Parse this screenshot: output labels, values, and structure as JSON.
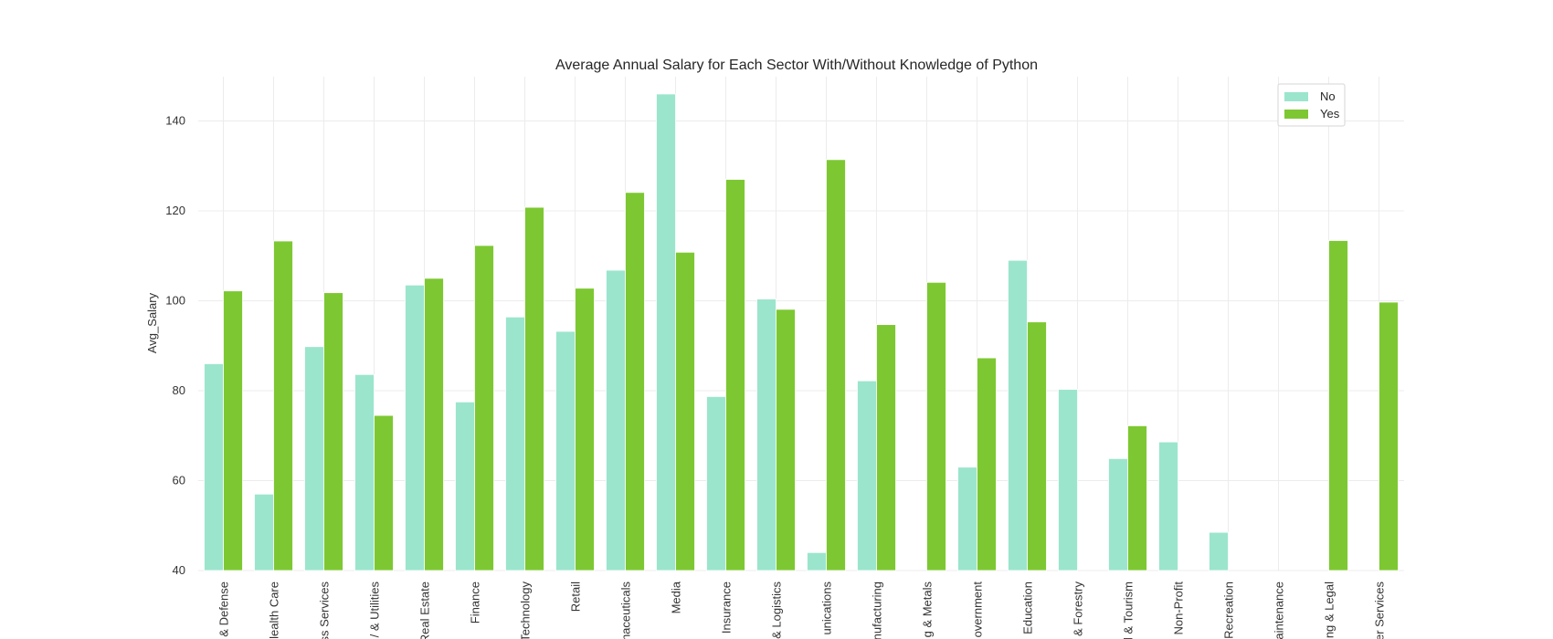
{
  "chart_data": {
    "type": "bar",
    "title": "Average Annual Salary for Each Sector With/Without Knowledge of Python",
    "xlabel": "",
    "ylabel": "Avg_Salary",
    "ylim": [
      40,
      150
    ],
    "yticks": [
      40,
      60,
      80,
      100,
      120,
      140
    ],
    "grid": true,
    "legend_position": "top-right",
    "categories": [
      "& Defense",
      "lealth Care",
      "ss Services",
      "/ & Utilities",
      "Real Estate",
      "Finance",
      "Technology",
      "Retail",
      "naceuticals",
      "Media",
      "Insurance",
      "& Logistics",
      "unications",
      "nufacturing",
      "g & Metals",
      "overnment",
      "Education",
      "& Forestry",
      "l & Tourism",
      "Non-Profit",
      "Recreation",
      "aintenance",
      "ng & Legal",
      "er Services"
    ],
    "series": [
      {
        "name": "No",
        "color": "#9be5cd",
        "values": [
          86,
          57,
          89.8,
          83.6,
          103.5,
          77.5,
          96.4,
          93.2,
          106.8,
          146,
          78.7,
          100.4,
          44,
          82.2,
          null,
          63,
          109,
          80.3,
          64.9,
          68.6,
          48.5,
          null,
          null,
          null
        ]
      },
      {
        "name": "Yes",
        "color": "#7dc832",
        "values": [
          102.2,
          113.3,
          101.8,
          74.5,
          105,
          112.3,
          120.8,
          102.8,
          124.1,
          110.8,
          127,
          98.1,
          131.4,
          94.7,
          104.1,
          87.3,
          95.3,
          null,
          72.2,
          null,
          null,
          null,
          113.4,
          99.7
        ]
      }
    ]
  }
}
